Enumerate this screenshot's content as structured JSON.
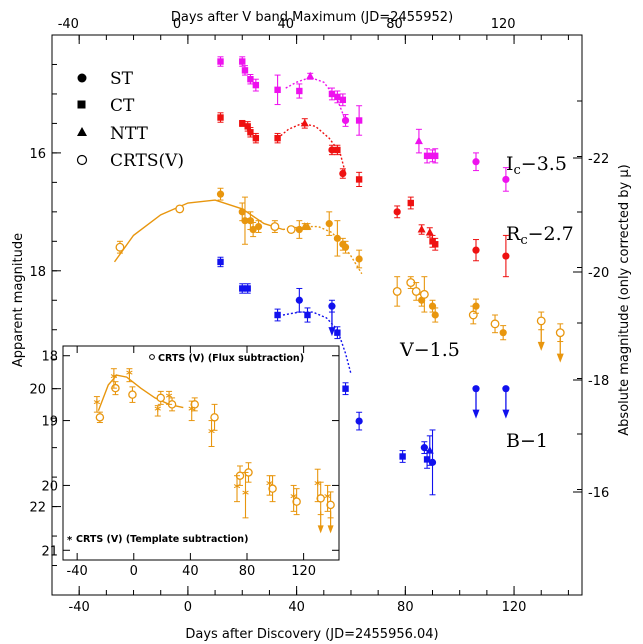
{
  "chart_data": [
    {
      "type": "scatter",
      "top_xlabel": "Days after V band Maximum (JD=2455952)",
      "xlabel": "Days after Discovery (JD=2455956.04)",
      "ylabel": "Apparent magnitude",
      "right_ylabel": "Absolute magnitude (only corrected by μ)",
      "xlim": [
        -50,
        145
      ],
      "ylim": [
        14.0,
        23.5
      ],
      "y_inverted": true,
      "grid": false,
      "x_ticks": [
        "-40",
        "0",
        "40",
        "80",
        "120"
      ],
      "top_x_ticks": [
        "-40",
        "0",
        "40",
        "80",
        "120"
      ],
      "y_ticks": [
        "16",
        "18",
        "20",
        "22"
      ],
      "right_y_ticks": [
        "-22",
        "-20",
        "-18",
        "-16"
      ],
      "legend": {
        "placement": "top-left",
        "entries": [
          {
            "marker": "circle",
            "label": "ST"
          },
          {
            "marker": "square",
            "label": "CT"
          },
          {
            "marker": "triangle",
            "label": "NTT"
          },
          {
            "marker": "open-circle",
            "label": "CRTS(V)"
          }
        ]
      },
      "series": [
        {
          "name": "Ic−3.5",
          "label_main": "I",
          "label_sub": "c",
          "label_rest": "−3.5",
          "color": "#ee11ee",
          "points": [
            {
              "x": 12,
              "y": 14.45,
              "e": 0.08,
              "m": "s"
            },
            {
              "x": 20,
              "y": 14.45,
              "e": 0.08,
              "m": "s"
            },
            {
              "x": 21,
              "y": 14.6,
              "e": 0.08,
              "m": "s"
            },
            {
              "x": 23,
              "y": 14.75,
              "e": 0.08,
              "m": "s"
            },
            {
              "x": 25,
              "y": 14.85,
              "e": 0.1,
              "m": "s"
            },
            {
              "x": 33,
              "y": 14.93,
              "e": 0.25,
              "m": "s"
            },
            {
              "x": 41,
              "y": 14.95,
              "e": 0.12,
              "m": "s"
            },
            {
              "x": 45,
              "y": 14.7,
              "e": 0.05,
              "m": "t"
            },
            {
              "x": 53,
              "y": 15.0,
              "e": 0.1,
              "m": "s"
            },
            {
              "x": 55,
              "y": 15.05,
              "e": 0.1,
              "m": "s"
            },
            {
              "x": 57,
              "y": 15.1,
              "e": 0.1,
              "m": "s"
            },
            {
              "x": 58,
              "y": 15.45,
              "e": 0.1,
              "m": "c"
            },
            {
              "x": 63,
              "y": 15.45,
              "e": 0.25,
              "m": "s"
            },
            {
              "x": 85,
              "y": 15.8,
              "e": 0.2,
              "m": "t"
            },
            {
              "x": 88,
              "y": 16.05,
              "e": 0.12,
              "m": "s"
            },
            {
              "x": 90,
              "y": 16.05,
              "e": 0.1,
              "m": "s"
            },
            {
              "x": 91,
              "y": 16.05,
              "e": 0.12,
              "m": "s"
            },
            {
              "x": 106,
              "y": 16.15,
              "e": 0.15,
              "m": "c"
            },
            {
              "x": 117,
              "y": 16.45,
              "e": 0.2,
              "m": "c"
            }
          ],
          "curve": [
            [
              36,
              14.9
            ],
            [
              40,
              14.8
            ],
            [
              45,
              14.72
            ],
            [
              50,
              14.8
            ],
            [
              55,
              15.1
            ],
            [
              58,
              15.45
            ]
          ]
        },
        {
          "name": "Rc−2.7",
          "label_main": "R",
          "label_sub": "c",
          "label_rest": "−2.7",
          "color": "#ee1111",
          "points": [
            {
              "x": 12,
              "y": 15.4,
              "e": 0.08,
              "m": "s"
            },
            {
              "x": 20,
              "y": 15.5,
              "e": 0.05,
              "m": "s"
            },
            {
              "x": 22,
              "y": 15.55,
              "e": 0.08,
              "m": "s"
            },
            {
              "x": 23,
              "y": 15.65,
              "e": 0.08,
              "m": "s"
            },
            {
              "x": 25,
              "y": 15.75,
              "e": 0.08,
              "m": "s"
            },
            {
              "x": 33,
              "y": 15.75,
              "e": 0.08,
              "m": "s"
            },
            {
              "x": 43,
              "y": 15.5,
              "e": 0.08,
              "m": "t"
            },
            {
              "x": 53,
              "y": 15.95,
              "e": 0.08,
              "m": "c"
            },
            {
              "x": 55,
              "y": 15.95,
              "e": 0.08,
              "m": "s"
            },
            {
              "x": 57,
              "y": 16.35,
              "e": 0.08,
              "m": "c"
            },
            {
              "x": 63,
              "y": 16.45,
              "e": 0.12,
              "m": "s"
            },
            {
              "x": 77,
              "y": 17.0,
              "e": 0.1,
              "m": "c"
            },
            {
              "x": 82,
              "y": 16.85,
              "e": 0.1,
              "m": "s"
            },
            {
              "x": 86,
              "y": 17.3,
              "e": 0.08,
              "m": "t"
            },
            {
              "x": 89,
              "y": 17.35,
              "e": 0.08,
              "m": "t"
            },
            {
              "x": 90,
              "y": 17.5,
              "e": 0.1,
              "m": "s"
            },
            {
              "x": 91,
              "y": 17.55,
              "e": 0.1,
              "m": "s"
            },
            {
              "x": 106,
              "y": 17.65,
              "e": 0.18,
              "m": "c"
            },
            {
              "x": 117,
              "y": 17.75,
              "e": 0.35,
              "m": "c"
            }
          ],
          "curve": [
            [
              33,
              15.75
            ],
            [
              37,
              15.6
            ],
            [
              42,
              15.5
            ],
            [
              47,
              15.55
            ],
            [
              52,
              15.75
            ],
            [
              56,
              16.0
            ],
            [
              58,
              16.35
            ]
          ]
        },
        {
          "name": "V−1.5",
          "label_main": "V−1.5",
          "label_sub": "",
          "label_rest": "",
          "color": "#e8960e",
          "points": [
            {
              "x": -25,
              "y": 17.6,
              "e": 0.1,
              "m": "o"
            },
            {
              "x": -3,
              "y": 16.95,
              "e": 0.05,
              "m": "o"
            },
            {
              "x": 12,
              "y": 16.7,
              "e": 0.1,
              "m": "c"
            },
            {
              "x": 20,
              "y": 17.0,
              "e": 0.15,
              "m": "c"
            },
            {
              "x": 21,
              "y": 17.15,
              "e": 0.4,
              "m": "c"
            },
            {
              "x": 23,
              "y": 17.15,
              "e": 0.15,
              "m": "c"
            },
            {
              "x": 24,
              "y": 17.3,
              "e": 0.12,
              "m": "c"
            },
            {
              "x": 26,
              "y": 17.25,
              "e": 0.1,
              "m": "c"
            },
            {
              "x": 32,
              "y": 17.25,
              "e": 0.1,
              "m": "o"
            },
            {
              "x": 38,
              "y": 17.3,
              "e": 0.05,
              "m": "o"
            },
            {
              "x": 41,
              "y": 17.3,
              "e": 0.15,
              "m": "c"
            },
            {
              "x": 43,
              "y": 17.25,
              "e": 0.05,
              "m": "t"
            },
            {
              "x": 44,
              "y": 17.25,
              "e": 0.05,
              "m": "t"
            },
            {
              "x": 52,
              "y": 17.2,
              "e": 0.2,
              "m": "c"
            },
            {
              "x": 55,
              "y": 17.45,
              "e": 0.3,
              "m": "c"
            },
            {
              "x": 57,
              "y": 17.55,
              "e": 0.1,
              "m": "c"
            },
            {
              "x": 58,
              "y": 17.6,
              "e": 0.1,
              "m": "c"
            },
            {
              "x": 63,
              "y": 17.8,
              "e": 0.15,
              "m": "c"
            },
            {
              "x": 77,
              "y": 18.35,
              "e": 0.25,
              "m": "o"
            },
            {
              "x": 82,
              "y": 18.2,
              "e": 0.1,
              "m": "o"
            },
            {
              "x": 84,
              "y": 18.35,
              "e": 0.15,
              "m": "o"
            },
            {
              "x": 86,
              "y": 18.5,
              "e": 0.1,
              "m": "c"
            },
            {
              "x": 87,
              "y": 18.4,
              "e": 0.3,
              "m": "o"
            },
            {
              "x": 90,
              "y": 18.6,
              "e": 0.1,
              "m": "c"
            },
            {
              "x": 91,
              "y": 18.75,
              "e": 0.12,
              "m": "c"
            },
            {
              "x": 105,
              "y": 18.75,
              "e": 0.15,
              "m": "o"
            },
            {
              "x": 106,
              "y": 18.6,
              "e": 0.12,
              "m": "c"
            },
            {
              "x": 113,
              "y": 18.9,
              "e": 0.15,
              "m": "o"
            },
            {
              "x": 116,
              "y": 19.05,
              "e": 0.12,
              "m": "c"
            },
            {
              "x": 130,
              "y": 18.85,
              "e": 0.15,
              "m": "o",
              "ul": true
            },
            {
              "x": 137,
              "y": 19.05,
              "e": 0.15,
              "m": "o",
              "ul": true
            }
          ],
          "curve": [
            [
              -27,
              17.85
            ],
            [
              -20,
              17.4
            ],
            [
              -10,
              17.05
            ],
            [
              0,
              16.85
            ],
            [
              10,
              16.8
            ],
            [
              20,
              16.95
            ],
            [
              28,
              17.2
            ],
            [
              35,
              17.3
            ]
          ],
          "curve2": [
            [
              35,
              17.3
            ],
            [
              42,
              17.25
            ],
            [
              48,
              17.25
            ],
            [
              53,
              17.35
            ],
            [
              57,
              17.55
            ],
            [
              60,
              17.75
            ],
            [
              64,
              18.05
            ]
          ]
        },
        {
          "name": "B−1",
          "label_main": "B−1",
          "label_sub": "",
          "label_rest": "",
          "color": "#1111ee",
          "points": [
            {
              "x": 12,
              "y": 17.85,
              "e": 0.08,
              "m": "s"
            },
            {
              "x": 20,
              "y": 18.3,
              "e": 0.08,
              "m": "s"
            },
            {
              "x": 22,
              "y": 18.3,
              "e": 0.08,
              "m": "s"
            },
            {
              "x": 33,
              "y": 18.75,
              "e": 0.1,
              "m": "s"
            },
            {
              "x": 41,
              "y": 18.5,
              "e": 0.2,
              "m": "c"
            },
            {
              "x": 44,
              "y": 18.75,
              "e": 0.12,
              "m": "s"
            },
            {
              "x": 53,
              "y": 18.6,
              "e": 0.1,
              "m": "c",
              "ul": true
            },
            {
              "x": 55,
              "y": 19.05,
              "e": 0.1,
              "m": "s"
            },
            {
              "x": 58,
              "y": 20.0,
              "e": 0.1,
              "m": "s"
            },
            {
              "x": 63,
              "y": 20.55,
              "e": 0.15,
              "m": "c"
            },
            {
              "x": 79,
              "y": 21.15,
              "e": 0.1,
              "m": "s"
            },
            {
              "x": 87,
              "y": 21.0,
              "e": 0.1,
              "m": "c"
            },
            {
              "x": 88,
              "y": 21.2,
              "e": 0.15,
              "m": "s"
            },
            {
              "x": 89,
              "y": 21.05,
              "e": 0.25,
              "m": "t"
            },
            {
              "x": 90,
              "y": 21.25,
              "e": 0.55,
              "m": "c"
            },
            {
              "x": 106,
              "y": 20.0,
              "e": 0.0,
              "m": "c",
              "ul": true
            },
            {
              "x": 117,
              "y": 20.0,
              "e": 0.0,
              "m": "c",
              "ul": true
            }
          ],
          "curve": [
            [
              35,
              18.75
            ],
            [
              41,
              18.7
            ],
            [
              46,
              18.7
            ],
            [
              51,
              18.8
            ],
            [
              55,
              19.0
            ],
            [
              58,
              19.4
            ],
            [
              60,
              19.75
            ]
          ]
        }
      ],
      "annotations": []
    },
    {
      "type": "scatter",
      "subtitle": "inset",
      "xlim": [
        -50,
        145
      ],
      "ylim": [
        17.85,
        21.15
      ],
      "y_inverted": true,
      "x_ticks": [
        "-40",
        "0",
        "40",
        "80",
        "120"
      ],
      "y_ticks": [
        "18",
        "19",
        "20",
        "21"
      ],
      "legend": {
        "entries": [
          {
            "marker": "open-circle",
            "label": "CRTS (V) (Flux subtraction)",
            "placement": "top-right"
          },
          {
            "marker": "star",
            "label": "CRTS (V) (Template subtraction)",
            "placement": "bottom-left"
          }
        ]
      },
      "color": "#e8960e",
      "series": [
        {
          "name": "CRTS (V) (Flux subtraction)",
          "points": [
            {
              "x": -25,
              "y": 18.95,
              "e": 0.08
            },
            {
              "x": -14,
              "y": 18.5,
              "e": 0.1
            },
            {
              "x": -2,
              "y": 18.6,
              "e": 0.12
            },
            {
              "x": 18,
              "y": 18.65,
              "e": 0.1
            },
            {
              "x": 26,
              "y": 18.75,
              "e": 0.1
            },
            {
              "x": 42,
              "y": 18.75,
              "e": 0.1
            },
            {
              "x": 56,
              "y": 18.95,
              "e": 0.2
            },
            {
              "x": 74,
              "y": 19.85,
              "e": 0.15
            },
            {
              "x": 80,
              "y": 19.8,
              "e": 0.15
            },
            {
              "x": 97,
              "y": 20.05,
              "e": 0.2
            },
            {
              "x": 114,
              "y": 20.25,
              "e": 0.2
            },
            {
              "x": 131,
              "y": 20.2,
              "e": 0.25
            },
            {
              "x": 138,
              "y": 20.3,
              "e": 0.2
            }
          ]
        },
        {
          "name": "CRTS (V) (Template subtraction)",
          "points": [
            {
              "x": -25,
              "y": 18.75,
              "e": 0.12
            },
            {
              "x": -13,
              "y": 18.35,
              "e": 0.15
            },
            {
              "x": -2,
              "y": 18.3,
              "e": 0.1
            },
            {
              "x": 18,
              "y": 18.85,
              "e": 0.08
            },
            {
              "x": 26,
              "y": 18.65,
              "e": 0.1
            },
            {
              "x": 42,
              "y": 18.85,
              "e": 0.15
            },
            {
              "x": 56,
              "y": 19.2,
              "e": 0.2
            },
            {
              "x": 74,
              "y": 20.05,
              "e": 0.2
            },
            {
              "x": 80,
              "y": 20.15,
              "e": 0.35
            },
            {
              "x": 97,
              "y": 20.0,
              "e": 0.15
            },
            {
              "x": 114,
              "y": 20.2,
              "e": 0.2
            },
            {
              "x": 131,
              "y": 20.0,
              "e": 0.25
            },
            {
              "x": 138,
              "y": 20.2,
              "e": 0.2
            }
          ]
        }
      ],
      "curve": [
        [
          -25,
          18.85
        ],
        [
          -18,
          18.45
        ],
        [
          -12,
          18.3
        ],
        [
          -5,
          18.33
        ],
        [
          5,
          18.5
        ],
        [
          15,
          18.65
        ],
        [
          25,
          18.75
        ],
        [
          35,
          18.8
        ]
      ]
    }
  ]
}
